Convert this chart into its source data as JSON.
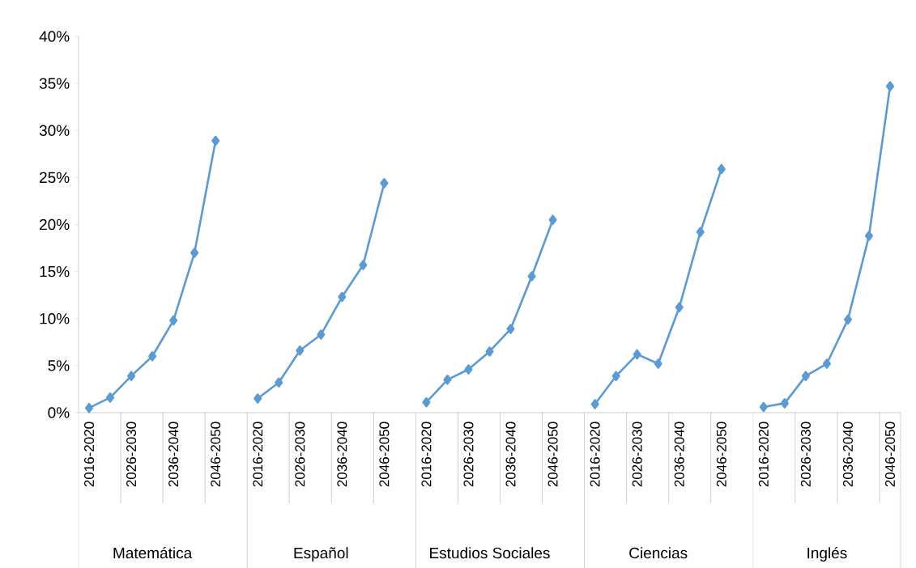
{
  "chart_data": {
    "type": "line",
    "marker": "diamond",
    "categories": [
      "2016-2020",
      null,
      "2026-2030",
      null,
      "2036-2040",
      null,
      "2046-2050",
      null,
      "2016-2020",
      null,
      "2026-2030",
      null,
      "2036-2040",
      null,
      "2046-2050",
      null,
      "2016-2020",
      null,
      "2026-2030",
      null,
      "2036-2040",
      null,
      "2046-2050",
      null,
      "2016-2020",
      null,
      "2026-2030",
      null,
      "2036-2040",
      null,
      "2046-2050",
      null,
      "2016-2020",
      null,
      "2026-2030",
      null,
      "2036-2040",
      null,
      "2046-2050"
    ],
    "ylim": [
      0,
      40
    ],
    "yticks": [
      {
        "value": 0,
        "label": "0%"
      },
      {
        "value": 5,
        "label": "5%"
      },
      {
        "value": 10,
        "label": "10%"
      },
      {
        "value": 15,
        "label": "15%"
      },
      {
        "value": 20,
        "label": "20%"
      },
      {
        "value": 25,
        "label": "25%"
      },
      {
        "value": 30,
        "label": "30%"
      },
      {
        "value": 35,
        "label": "35%"
      },
      {
        "value": 40,
        "label": "40%"
      }
    ],
    "annotations": [
      "Matemática",
      "Español",
      "Estudios Sociales",
      "Ciencias",
      "Inglés"
    ],
    "series": [
      {
        "color": "#5b9bd5",
        "values": [
          0.5,
          1.6,
          3.9,
          6.0,
          9.8,
          17.0,
          28.9,
          null,
          1.5,
          3.2,
          6.6,
          8.3,
          12.3,
          15.7,
          24.4,
          null,
          1.1,
          3.5,
          4.6,
          6.5,
          8.9,
          14.5,
          20.5,
          null,
          0.9,
          3.9,
          6.2,
          5.2,
          11.2,
          19.2,
          25.9,
          null,
          0.6,
          1.0,
          3.9,
          5.2,
          9.9,
          18.8,
          34.7
        ]
      }
    ]
  }
}
